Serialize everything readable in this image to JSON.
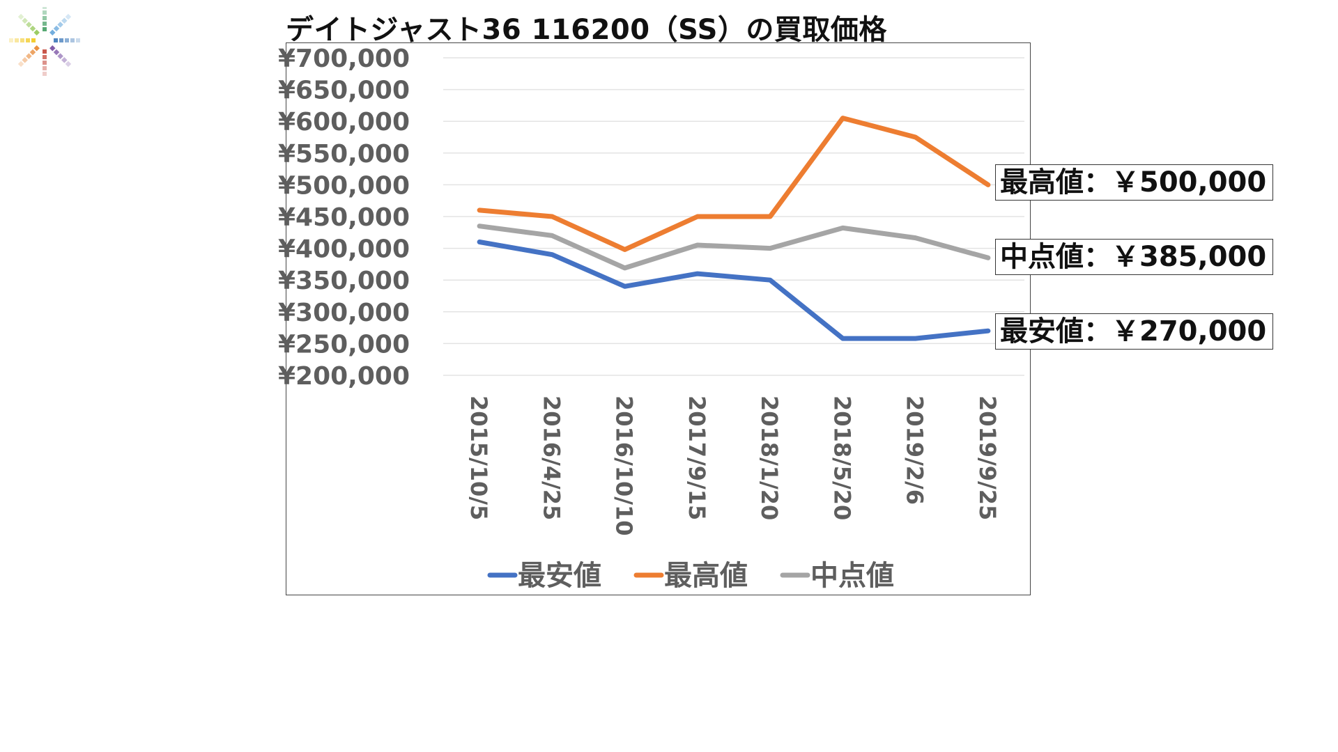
{
  "slide": {
    "title": "デイトジャスト36 116200（SS）の買取価格"
  },
  "callouts": {
    "high": "最高値：￥500,000",
    "mid": "中点値：￥385,000",
    "low": "最安値：￥270,000"
  },
  "chart_data": {
    "type": "line",
    "title": "デイトジャスト36 116200（SS）の買取価格",
    "categories": [
      "2015/10/5",
      "2016/4/25",
      "2016/10/10",
      "2017/9/15",
      "2018/1/20",
      "2018/5/20",
      "2019/2/6",
      "2019/9/25"
    ],
    "y_tick_labels": [
      "¥700,000",
      "¥650,000",
      "¥600,000",
      "¥550,000",
      "¥500,000",
      "¥450,000",
      "¥400,000",
      "¥350,000",
      "¥300,000",
      "¥250,000",
      "¥200,000"
    ],
    "ylim": [
      200000,
      700000
    ],
    "grid": true,
    "legend_position": "bottom",
    "series": [
      {
        "name": "最安値",
        "color": "#4472C4",
        "values": [
          410000,
          390000,
          340000,
          360000,
          350000,
          258000,
          258000,
          270000
        ]
      },
      {
        "name": "最高値",
        "color": "#ED7D31",
        "values": [
          460000,
          450000,
          398000,
          450000,
          450000,
          605000,
          575000,
          500000
        ]
      },
      {
        "name": "中点値",
        "color": "#A5A5A5",
        "values": [
          435000,
          420000,
          369000,
          405000,
          400000,
          432000,
          416500,
          385000
        ]
      }
    ]
  },
  "logo": {
    "icon": "color-spectrum-asterisk-icon",
    "colors": [
      "#3a9a5c",
      "#5aa0d8",
      "#2f6fb5",
      "#6b3f9a",
      "#c0392b",
      "#e67e22",
      "#f1c40f",
      "#8bc34a"
    ]
  }
}
